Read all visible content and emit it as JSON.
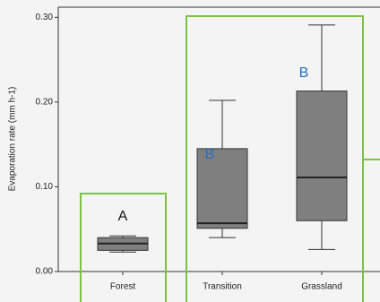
{
  "chart_data": {
    "type": "box",
    "ylabel": "Evaporation rate (mm h-1)",
    "categories": [
      "Forest",
      "Transition",
      "Grassland"
    ],
    "boxes": [
      {
        "low": 0.023,
        "q1": 0.025,
        "median": 0.033,
        "q3": 0.04,
        "high": 0.042
      },
      {
        "low": 0.04,
        "q1": 0.051,
        "median": 0.057,
        "q3": 0.145,
        "high": 0.202
      },
      {
        "low": 0.026,
        "q1": 0.06,
        "median": 0.111,
        "q3": 0.213,
        "high": 0.291
      }
    ],
    "color": "#7f7f7f",
    "ylim": [
      0,
      0.312
    ],
    "yticks": [
      {
        "value": 0,
        "label": "0.00"
      },
      {
        "value": 0.1,
        "label": "0.10"
      },
      {
        "value": 0.2,
        "label": "0.20"
      },
      {
        "value": 0.3,
        "label": "0.30"
      }
    ],
    "annotations": [
      "A",
      "B",
      "B"
    ],
    "annotation_color": "#1f6fc4",
    "highlight_color": "#7dc243"
  }
}
